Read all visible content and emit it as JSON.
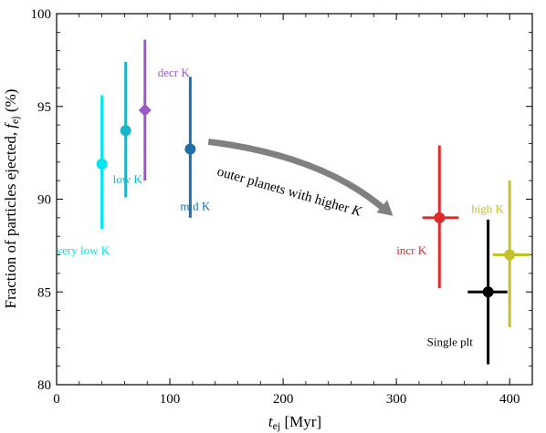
{
  "chart_data": {
    "type": "scatter",
    "title": "",
    "xlabel": "t_ej [Myr]",
    "ylabel": "Fraction of particles ejected, f_ej (%)",
    "xlim": [
      0,
      420
    ],
    "ylim": [
      80,
      100
    ],
    "xticks": [
      0,
      100,
      200,
      300,
      400
    ],
    "yticks": [
      80,
      85,
      90,
      95,
      100
    ],
    "grid": false,
    "legend": "none",
    "points": [
      {
        "label": "very low K",
        "x": 40,
        "y": 91.9,
        "yerr": [
          88.4,
          95.6
        ],
        "xerr": null,
        "color": "#00e5ee",
        "marker": "circle"
      },
      {
        "label": "low K",
        "x": 61,
        "y": 93.7,
        "yerr": [
          90.1,
          97.4
        ],
        "xerr": null,
        "color": "#1cb5c7",
        "marker": "circle"
      },
      {
        "label": "decr K",
        "x": 78,
        "y": 94.8,
        "yerr": [
          91.0,
          98.6
        ],
        "xerr": null,
        "color": "#9b59c7",
        "marker": "diamond"
      },
      {
        "label": "mid K",
        "x": 118,
        "y": 92.7,
        "yerr": [
          89.0,
          96.6
        ],
        "xerr": null,
        "color": "#1f6fad",
        "marker": "circle"
      },
      {
        "label": "incr K",
        "x": 338,
        "y": 89.0,
        "yerr": [
          85.2,
          92.9
        ],
        "xerr": [
          323,
          355
        ],
        "color": "#dd2a2a",
        "marker": "circle"
      },
      {
        "label": "high K",
        "x": 400,
        "y": 87.0,
        "yerr": [
          83.1,
          91.0
        ],
        "xerr": [
          385,
          418
        ],
        "color": "#c2c22c",
        "marker": "circle"
      },
      {
        "label": "Single plt",
        "x": 381,
        "y": 85.0,
        "yerr": [
          81.1,
          88.9
        ],
        "xerr": [
          363,
          398
        ],
        "color": "#000000",
        "marker": "circle"
      }
    ],
    "annotation": {
      "text": "outer planets with higher K",
      "arrow_from": [
        134,
        93.1
      ],
      "arrow_to": [
        297,
        89.1
      ],
      "color": "#808080"
    }
  }
}
